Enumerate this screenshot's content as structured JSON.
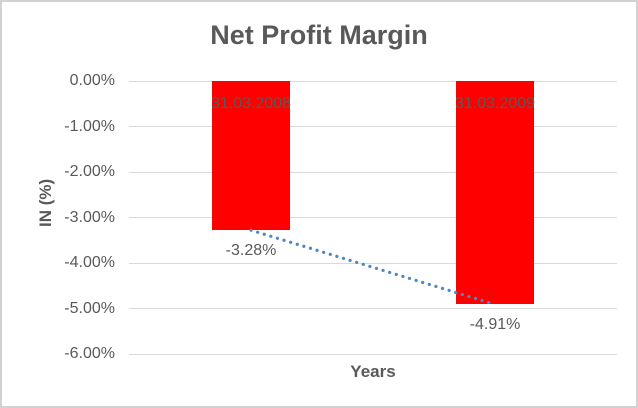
{
  "chart_data": {
    "type": "bar",
    "title": "Net Profit Margin",
    "xlabel": "Years",
    "ylabel": "IN (%)",
    "categories": [
      "31.03.2008",
      "31.03.2009"
    ],
    "values": [
      -3.28,
      -4.91
    ],
    "data_labels": [
      "-3.28%",
      "-4.91%"
    ],
    "ylim": [
      -6,
      0
    ],
    "ytick_labels": [
      "0.00%",
      "-1.00%",
      "-2.00%",
      "-3.00%",
      "-4.00%",
      "-5.00%",
      "-6.00%"
    ],
    "ytick_values": [
      0,
      -1,
      -2,
      -3,
      -4,
      -5,
      -6
    ],
    "grid": "horizontal",
    "legend": "none",
    "bar_color": "#ff0000",
    "trendline": {
      "type": "linear",
      "style": "dotted",
      "color": "#4d88c6",
      "points": [
        [
          0,
          -3.28
        ],
        [
          1,
          -4.91
        ]
      ]
    },
    "colors": {
      "text": "#595959",
      "gridline": "#d9d9d9",
      "background": "#ffffff",
      "border": "#d2d2d2"
    }
  }
}
